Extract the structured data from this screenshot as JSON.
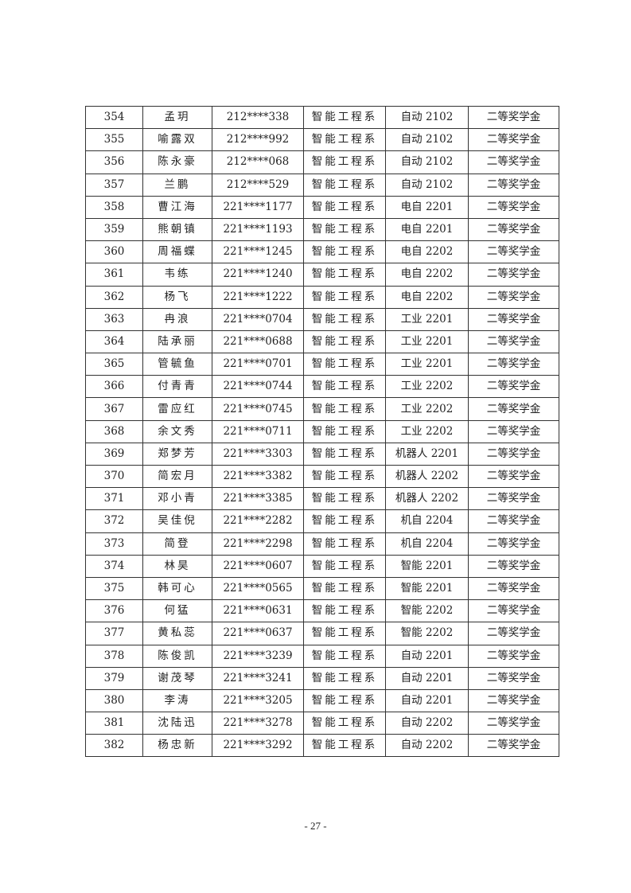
{
  "table": {
    "rows": [
      [
        "354",
        "孟玥",
        "212****338",
        "智能工程系",
        "自动 2102",
        "二等奖学金"
      ],
      [
        "355",
        "喻露双",
        "212****992",
        "智能工程系",
        "自动 2102",
        "二等奖学金"
      ],
      [
        "356",
        "陈永豪",
        "212****068",
        "智能工程系",
        "自动 2102",
        "二等奖学金"
      ],
      [
        "357",
        "兰鹏",
        "212****529",
        "智能工程系",
        "自动 2102",
        "二等奖学金"
      ],
      [
        "358",
        "曹江海",
        "221****1177",
        "智能工程系",
        "电自 2201",
        "二等奖学金"
      ],
      [
        "359",
        "熊朝镇",
        "221****1193",
        "智能工程系",
        "电自 2201",
        "二等奖学金"
      ],
      [
        "360",
        "周福蝶",
        "221****1245",
        "智能工程系",
        "电自 2202",
        "二等奖学金"
      ],
      [
        "361",
        "韦练",
        "221****1240",
        "智能工程系",
        "电自 2202",
        "二等奖学金"
      ],
      [
        "362",
        "杨飞",
        "221****1222",
        "智能工程系",
        "电自 2202",
        "二等奖学金"
      ],
      [
        "363",
        "冉浪",
        "221****0704",
        "智能工程系",
        "工业 2201",
        "二等奖学金"
      ],
      [
        "364",
        "陆承丽",
        "221****0688",
        "智能工程系",
        "工业 2201",
        "二等奖学金"
      ],
      [
        "365",
        "管毓鱼",
        "221****0701",
        "智能工程系",
        "工业 2201",
        "二等奖学金"
      ],
      [
        "366",
        "付青青",
        "221****0744",
        "智能工程系",
        "工业 2202",
        "二等奖学金"
      ],
      [
        "367",
        "雷应红",
        "221****0745",
        "智能工程系",
        "工业 2202",
        "二等奖学金"
      ],
      [
        "368",
        "余文秀",
        "221****0711",
        "智能工程系",
        "工业 2202",
        "二等奖学金"
      ],
      [
        "369",
        "郑梦芳",
        "221****3303",
        "智能工程系",
        "机器人 2201",
        "二等奖学金"
      ],
      [
        "370",
        "简宏月",
        "221****3382",
        "智能工程系",
        "机器人 2202",
        "二等奖学金"
      ],
      [
        "371",
        "邓小青",
        "221****3385",
        "智能工程系",
        "机器人 2202",
        "二等奖学金"
      ],
      [
        "372",
        "吴佳倪",
        "221****2282",
        "智能工程系",
        "机自 2204",
        "二等奖学金"
      ],
      [
        "373",
        "简登",
        "221****2298",
        "智能工程系",
        "机自 2204",
        "二等奖学金"
      ],
      [
        "374",
        "林昊",
        "221****0607",
        "智能工程系",
        "智能 2201",
        "二等奖学金"
      ],
      [
        "375",
        "韩可心",
        "221****0565",
        "智能工程系",
        "智能 2201",
        "二等奖学金"
      ],
      [
        "376",
        "何猛",
        "221****0631",
        "智能工程系",
        "智能 2202",
        "二等奖学金"
      ],
      [
        "377",
        "黄私蕊",
        "221****0637",
        "智能工程系",
        "智能 2202",
        "二等奖学金"
      ],
      [
        "378",
        "陈俊凯",
        "221****3239",
        "智能工程系",
        "自动 2201",
        "二等奖学金"
      ],
      [
        "379",
        "谢茂琴",
        "221****3241",
        "智能工程系",
        "自动 2201",
        "二等奖学金"
      ],
      [
        "380",
        "李涛",
        "221****3205",
        "智能工程系",
        "自动 2201",
        "二等奖学金"
      ],
      [
        "381",
        "沈陆迅",
        "221****3278",
        "智能工程系",
        "自动 2202",
        "二等奖学金"
      ],
      [
        "382",
        "杨忠新",
        "221****3292",
        "智能工程系",
        "自动 2202",
        "二等奖学金"
      ]
    ]
  },
  "footer": {
    "page_number": "- 27 -"
  }
}
